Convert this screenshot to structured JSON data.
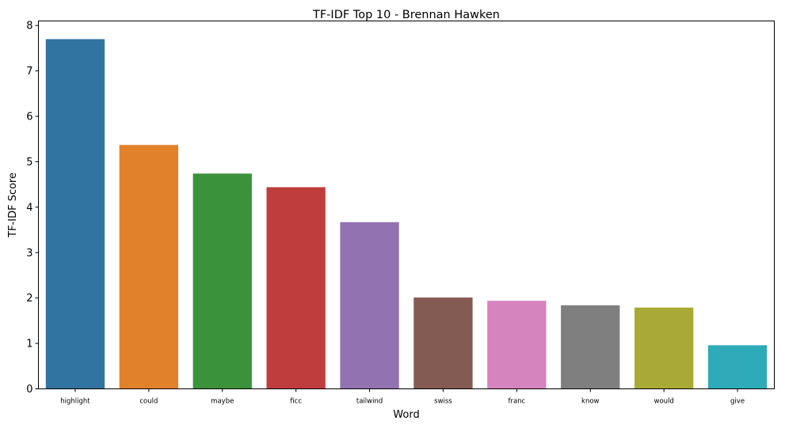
{
  "chart_data": {
    "type": "bar",
    "title": "TF-IDF Top 10 - Brennan Hawken",
    "xlabel": "Word",
    "ylabel": "TF-IDF Score",
    "ylim": [
      0,
      8.1
    ],
    "yticks": [
      0,
      1,
      2,
      3,
      4,
      5,
      6,
      7,
      8
    ],
    "categories": [
      "highlight",
      "could",
      "maybe",
      "ficc",
      "tailwind",
      "swiss",
      "franc",
      "know",
      "would",
      "give"
    ],
    "values": [
      7.7,
      5.37,
      4.74,
      4.44,
      3.67,
      2.01,
      1.94,
      1.84,
      1.79,
      0.96
    ],
    "colors": [
      "#3274a1",
      "#e1812c",
      "#3a923a",
      "#c03d3e",
      "#9372b2",
      "#845b53",
      "#d684bd",
      "#7f7f7f",
      "#a9aa35",
      "#2eaab8"
    ],
    "grid": false,
    "legend": "none"
  }
}
